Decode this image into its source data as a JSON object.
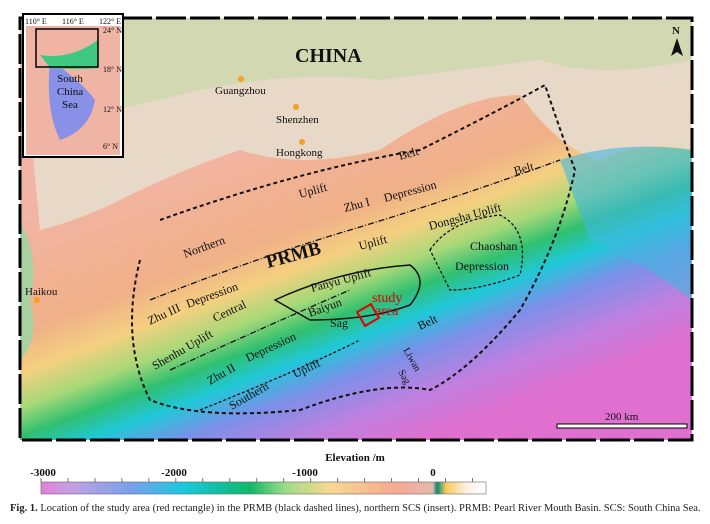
{
  "map": {
    "country": "CHINA",
    "cities": [
      "Guangzhou",
      "Shenzhen",
      "Hongkong",
      "Haikou"
    ],
    "units": {
      "belt1": "Belt",
      "uplift1": "Uplift",
      "zhu1": "Zhu I",
      "depression1": "Depression",
      "belt2": "Belt",
      "northern": "Northern",
      "prmb": "PRMB",
      "uplift2": "Uplift",
      "dongsha": "Dongsha Uplift",
      "chaoshan": "Chaoshan",
      "depression2": "Depression",
      "panyu": "Panyu Uplift",
      "zhu3": "Zhu III",
      "depression3": "Depression",
      "central": "Central",
      "baiyun": "Baiyun",
      "sag1": "Sag",
      "belt3": "Belt",
      "shenhu": "Shenhu Uplift",
      "zhu2": "Zhu II",
      "depression4": "Depression",
      "uplift3": "Uplift",
      "southern": "Southern",
      "liwan": "Liwan",
      "sag2": "Sag"
    },
    "study_area": [
      "study",
      "area"
    ],
    "scale": "200 km",
    "north": "N",
    "study_color": "#e00000"
  },
  "inset": {
    "lon": [
      "110° E",
      "116° E",
      "122° E"
    ],
    "lat": [
      "24° N",
      "18° N",
      "12° N",
      "6° N"
    ],
    "label": [
      "South",
      "China",
      "Sea"
    ]
  },
  "colorbar": {
    "title": "Elevation /m",
    "ticks": [
      "-3000",
      "-2000",
      "-1000",
      "0"
    ],
    "range": [
      -3000,
      300
    ]
  },
  "caption": {
    "label": "Fig. 1.",
    "text": " Location of the study area (red rectangle) in the PRMB (black dashed lines), northern SCS (insert). PRMB: Pearl River Mouth Basin. SCS: South China Sea."
  }
}
